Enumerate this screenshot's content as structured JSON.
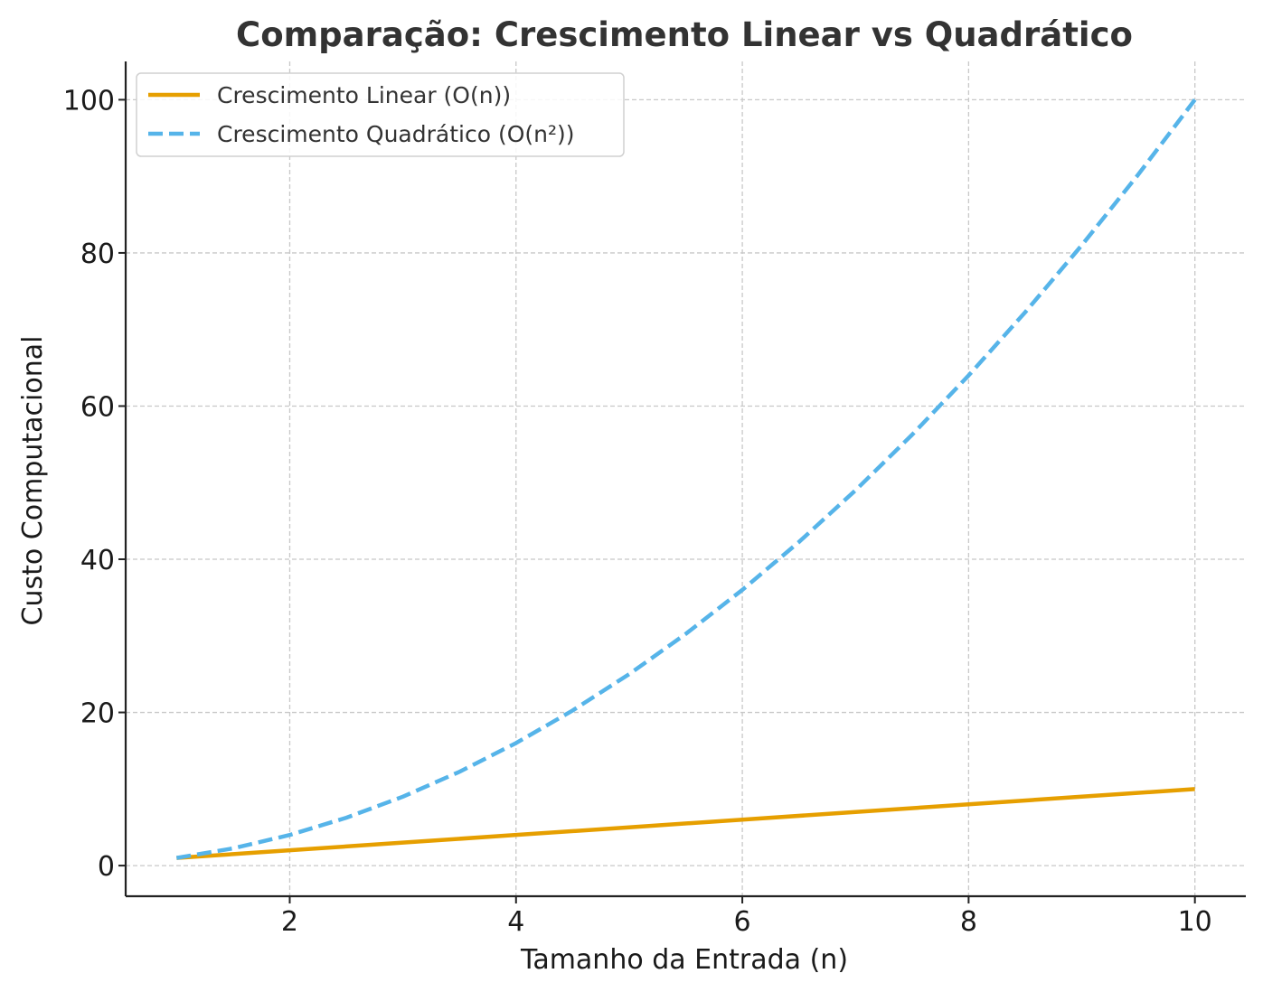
{
  "chart_data": {
    "type": "line",
    "title": "Comparação: Crescimento Linear vs Quadrático",
    "xlabel": "Tamanho da Entrada (n)",
    "ylabel": "Custo Computacional",
    "xlim": [
      0.55,
      10.45
    ],
    "ylim": [
      -4,
      105
    ],
    "x_ticks": [
      2,
      4,
      6,
      8,
      10
    ],
    "y_ticks": [
      0,
      20,
      40,
      60,
      80,
      100
    ],
    "grid": true,
    "legend_position": "top-left",
    "series": [
      {
        "name": "Crescimento Linear (O(n))",
        "color": "#E69F00",
        "dash": "solid",
        "x": [
          1,
          2,
          3,
          4,
          5,
          6,
          7,
          8,
          9,
          10
        ],
        "y": [
          1,
          2,
          3,
          4,
          5,
          6,
          7,
          8,
          9,
          10
        ]
      },
      {
        "name": "Crescimento Quadrático (O(n²))",
        "color": "#56B4E9",
        "dash": "dashed",
        "x": [
          1,
          1.5,
          2,
          2.5,
          3,
          3.5,
          4,
          4.5,
          5,
          5.5,
          6,
          6.5,
          7,
          7.5,
          8,
          8.5,
          9,
          9.5,
          10
        ],
        "y": [
          1,
          2.25,
          4,
          6.25,
          9,
          12.25,
          16,
          20.25,
          25,
          30.25,
          36,
          42.25,
          49,
          56.25,
          64,
          72.25,
          81,
          90.25,
          100
        ]
      }
    ]
  }
}
